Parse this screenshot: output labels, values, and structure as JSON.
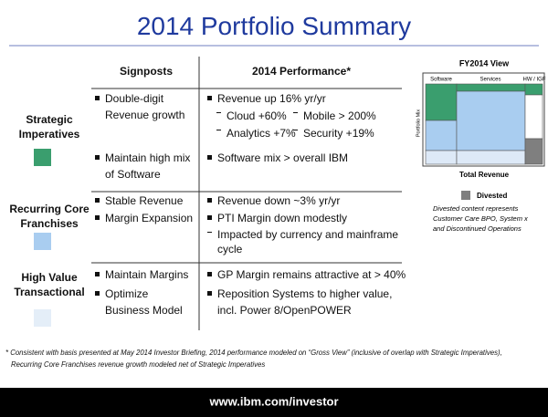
{
  "title": "2014 Portfolio Summary",
  "table": {
    "headers": [
      "Signposts",
      "2014 Performance*"
    ],
    "rows": [
      {
        "label": "Strategic Imperatives",
        "signposts": [
          "Double-digit Revenue growth",
          "Maintain high mix of Software"
        ],
        "performance": [
          "Revenue up 16% yr/yr",
          "Software mix > overall IBM"
        ],
        "details": [
          "Cloud +60%",
          "Mobile > 200%",
          "Analytics +7%",
          "Security +19%"
        ]
      },
      {
        "label": "Recurring Core Franchises",
        "signposts": [
          "Stable Revenue",
          "Margin Expansion"
        ],
        "performance": [
          "Revenue down ~3% yr/yr",
          "PTI Margin down modestly"
        ],
        "details": [
          "Impacted by currency and mainframe cycle"
        ]
      },
      {
        "label": "High Value Transactional",
        "signposts": [
          "Maintain Margins",
          "Optimize Business Model"
        ],
        "performance": [
          "GP Margin remains attractive at > 40%",
          "Reposition Systems to higher value, incl. Power 8/OpenPOWER"
        ]
      }
    ]
  },
  "mix_chart": {
    "title": "FY2014  View",
    "columns": [
      "Software",
      "Services",
      "HW / IGF"
    ],
    "y_label": "Portfolio Mix",
    "x_label": "Total Revenue",
    "legend": "Divested",
    "note": [
      "Divested content represents",
      "Customer Care BPO, System x",
      "and Discontinued Operations"
    ]
  },
  "footnote": [
    "* Consistent with basis presented at May 2014 Investor Briefing, 2014 performance modeled on “Gross View” (inclusive of overlap with Strategic Imperatives),",
    "Recurring Core Franchises revenue growth modeled  net of Strategic Imperatives"
  ],
  "footer": "www.ibm.com/investor"
}
